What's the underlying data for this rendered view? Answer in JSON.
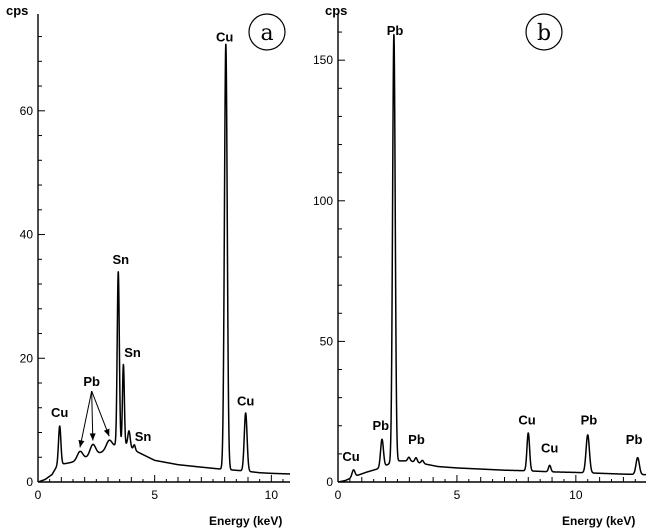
{
  "chart_data": [
    {
      "type": "line",
      "panel_label": "a",
      "ylabel": "cps",
      "xlabel": "Energy (keV)",
      "xlim": [
        0,
        10.8
      ],
      "ylim": [
        0,
        75
      ],
      "xticks": [
        0,
        5,
        10
      ],
      "yticks": [
        0,
        20,
        40,
        60
      ],
      "grid": false,
      "background_level": [
        [
          0,
          0
        ],
        [
          0.3,
          0.4
        ],
        [
          0.6,
          1.2
        ],
        [
          0.85,
          2.8
        ],
        [
          1.2,
          3.0
        ],
        [
          1.6,
          3.3
        ],
        [
          2.0,
          3.8
        ],
        [
          2.6,
          4.6
        ],
        [
          3.2,
          5.6
        ],
        [
          3.4,
          6.0
        ],
        [
          3.8,
          6.0
        ],
        [
          4.3,
          4.8
        ],
        [
          5.0,
          3.5
        ],
        [
          6.0,
          2.8
        ],
        [
          7.0,
          2.4
        ],
        [
          7.8,
          2.1
        ],
        [
          8.8,
          1.8
        ],
        [
          9.5,
          1.5
        ],
        [
          10.0,
          1.4
        ],
        [
          10.8,
          1.3
        ]
      ],
      "peaks": [
        {
          "x": 0.93,
          "height": 6.2,
          "width": 0.05
        },
        {
          "x": 1.8,
          "height": 1.4,
          "width": 0.12
        },
        {
          "x": 2.35,
          "height": 1.8,
          "width": 0.12
        },
        {
          "x": 3.05,
          "height": 1.4,
          "width": 0.12
        },
        {
          "x": 3.44,
          "height": 28.0,
          "width": 0.045
        },
        {
          "x": 3.66,
          "height": 13.0,
          "width": 0.04
        },
        {
          "x": 3.9,
          "height": 2.5,
          "width": 0.05
        },
        {
          "x": 4.13,
          "height": 0.8,
          "width": 0.04
        },
        {
          "x": 8.05,
          "height": 68.8,
          "width": 0.06
        },
        {
          "x": 8.9,
          "height": 9.4,
          "width": 0.06
        }
      ],
      "peak_labels": [
        {
          "text": "Cu",
          "x": 0.93,
          "y": 10.5
        },
        {
          "text": "Pb",
          "x": 2.3,
          "y": 15.5
        },
        {
          "text": "Sn",
          "x": 3.55,
          "y": 35.2
        },
        {
          "text": "Sn",
          "x": 4.05,
          "y": 20.2
        },
        {
          "text": "Sn",
          "x": 4.5,
          "y": 6.6
        },
        {
          "text": "Cu",
          "x": 8.0,
          "y": 71.2
        },
        {
          "text": "Cu",
          "x": 8.9,
          "y": 12.4
        }
      ],
      "pb_arrows_to_x": [
        1.8,
        2.35,
        3.05
      ]
    },
    {
      "type": "line",
      "panel_label": "b",
      "ylabel": "cps",
      "xlabel": "Energy (keV)",
      "xlim": [
        0,
        12.95
      ],
      "ylim": [
        0,
        165
      ],
      "xticks": [
        0,
        5,
        10
      ],
      "yticks": [
        0,
        50,
        100,
        150
      ],
      "grid": false,
      "background_level": [
        [
          0,
          0
        ],
        [
          0.3,
          0.5
        ],
        [
          0.7,
          2.0
        ],
        [
          1.2,
          3.5
        ],
        [
          1.8,
          5.0
        ],
        [
          2.4,
          7.5
        ],
        [
          3.0,
          7.5
        ],
        [
          3.6,
          6.5
        ],
        [
          4.2,
          5.5
        ],
        [
          5.0,
          5.0
        ],
        [
          6.0,
          4.6
        ],
        [
          7.0,
          4.2
        ],
        [
          7.9,
          4.0
        ],
        [
          9.0,
          3.6
        ],
        [
          10.0,
          3.4
        ],
        [
          11.0,
          3.1
        ],
        [
          12.0,
          2.8
        ],
        [
          12.95,
          2.6
        ]
      ],
      "peaks": [
        {
          "x": 0.65,
          "height": 2.5,
          "width": 0.06
        },
        {
          "x": 1.85,
          "height": 10.0,
          "width": 0.06
        },
        {
          "x": 2.35,
          "height": 152.0,
          "width": 0.055
        },
        {
          "x": 2.98,
          "height": 1.3,
          "width": 0.05
        },
        {
          "x": 3.28,
          "height": 1.6,
          "width": 0.05
        },
        {
          "x": 3.55,
          "height": 1.1,
          "width": 0.05
        },
        {
          "x": 8.0,
          "height": 13.5,
          "width": 0.055
        },
        {
          "x": 8.9,
          "height": 2.3,
          "width": 0.05
        },
        {
          "x": 10.5,
          "height": 13.5,
          "width": 0.07
        },
        {
          "x": 12.6,
          "height": 6.0,
          "width": 0.07
        }
      ],
      "peak_labels": [
        {
          "text": "Pb",
          "x": 2.4,
          "y": 159.0
        },
        {
          "text": "Pb",
          "x": 1.8,
          "y": 18.5
        },
        {
          "text": "Pb",
          "x": 3.3,
          "y": 13.5
        },
        {
          "text": "Cu",
          "x": 0.55,
          "y": 7.5
        },
        {
          "text": "Cu",
          "x": 7.95,
          "y": 20.5
        },
        {
          "text": "Cu",
          "x": 8.9,
          "y": 10.5
        },
        {
          "text": "Pb",
          "x": 10.55,
          "y": 20.5
        },
        {
          "text": "Pb",
          "x": 12.45,
          "y": 13.5
        }
      ]
    }
  ]
}
